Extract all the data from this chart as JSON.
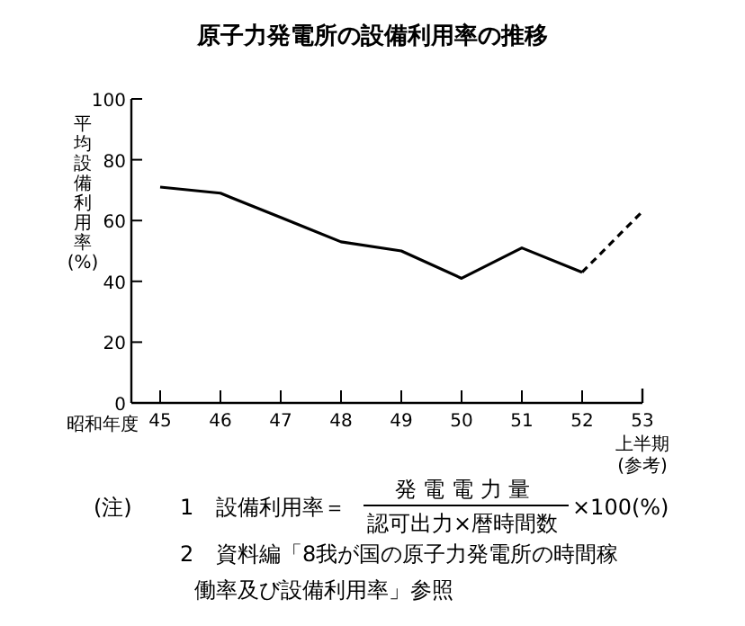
{
  "chart_data": {
    "type": "line",
    "title": "原子力発電所の設備利用率の推移",
    "ylabel": "平均設備利用率(%)",
    "xlabel": "昭和年度",
    "categories": [
      "45",
      "46",
      "47",
      "48",
      "49",
      "50",
      "51",
      "52",
      "53"
    ],
    "series": [
      {
        "color": "#000000",
        "line_style": "solid",
        "values": [
          71,
          69,
          61,
          53,
          50,
          41,
          51,
          43,
          null
        ]
      },
      {
        "color": "#000000",
        "line_style": "dashed",
        "values": [
          null,
          null,
          null,
          null,
          null,
          null,
          null,
          43,
          63
        ]
      }
    ],
    "ylim": [
      0,
      100
    ],
    "yticks": [
      0,
      20,
      40,
      60,
      80,
      100
    ],
    "grid": false,
    "marker": "none",
    "annotations": [
      "上半期",
      "(参考)",
      "(注)",
      "1",
      "設備利用率＝",
      "発 電 電 力 量",
      "認可出力×暦時間数",
      "×100(%)",
      "2",
      "資料編「8我が国の原子力発電所の時間稼働率及び設備利用率」参照"
    ]
  }
}
